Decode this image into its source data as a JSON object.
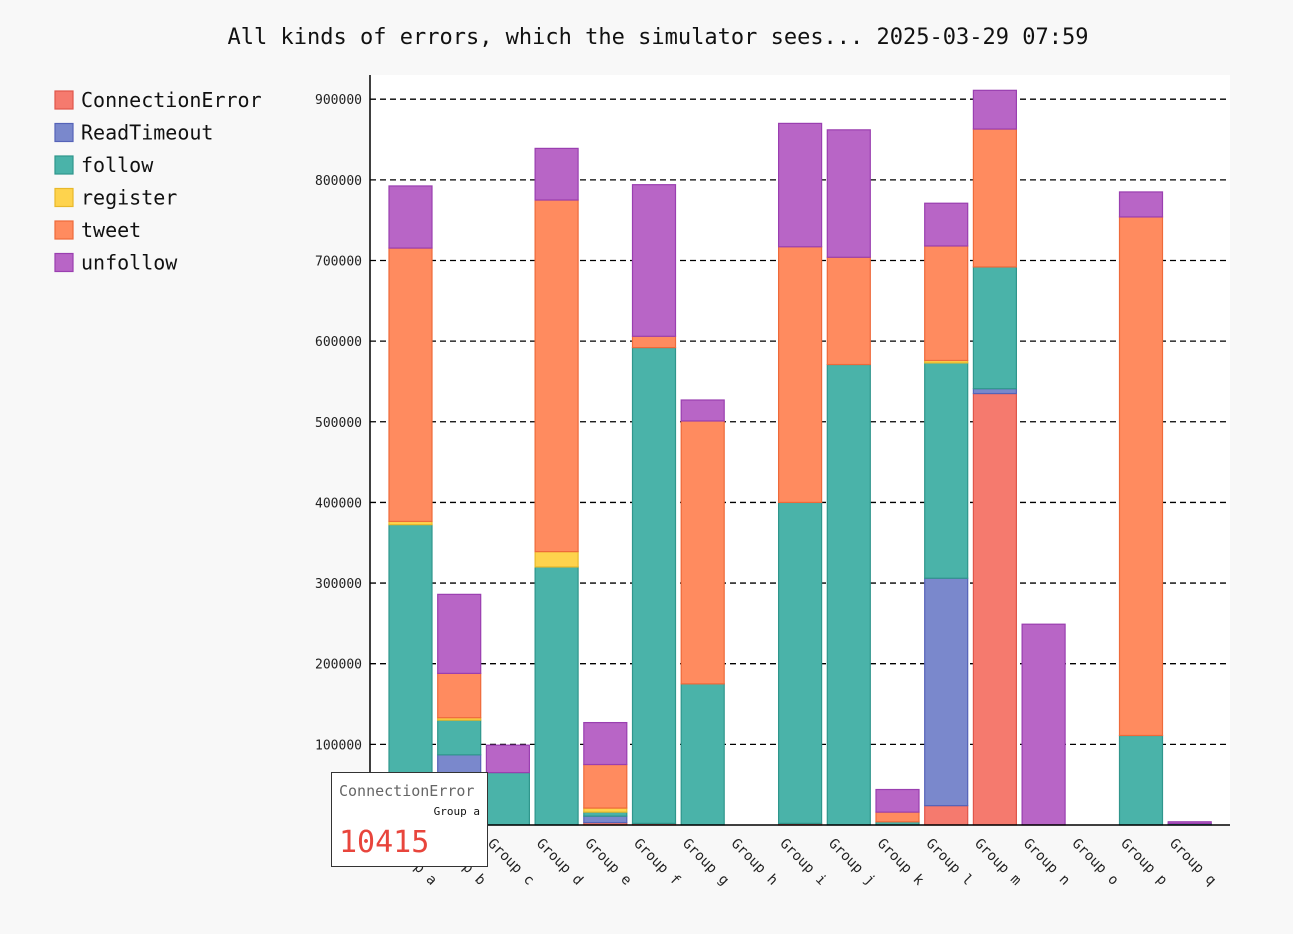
{
  "chart_data": {
    "type": "bar",
    "stacked": true,
    "title": "All kinds of errors, which the simulator sees... 2025-03-29 07:59",
    "xlabel": "",
    "ylabel": "",
    "ylim": [
      0,
      930000
    ],
    "y_ticks": [
      0,
      100000,
      200000,
      300000,
      400000,
      500000,
      600000,
      700000,
      800000,
      900000
    ],
    "y_tick_labels": [
      "0",
      "100000",
      "200000",
      "300000",
      "400000",
      "500000",
      "600000",
      "700000",
      "800000",
      "900000"
    ],
    "grid": "horizontal dashed",
    "legend_position": "top-left",
    "categories": [
      "Group a",
      "Group b",
      "Group c",
      "Group d",
      "Group e",
      "Group f",
      "Group g",
      "Group h",
      "Group i",
      "Group j",
      "Group k",
      "Group l",
      "Group m",
      "Group n",
      "Group o",
      "Group p",
      "Group q"
    ],
    "series": [
      {
        "name": "ConnectionError",
        "color": "#f57a6e",
        "values": [
          10415,
          3000,
          0,
          0,
          3000,
          2000,
          0,
          0,
          2000,
          0,
          0,
          24000,
          535000,
          0,
          0,
          0,
          0
        ]
      },
      {
        "name": "ReadTimeout",
        "color": "#7a88cc",
        "values": [
          0,
          84000,
          0,
          0,
          8000,
          0,
          0,
          0,
          0,
          0,
          0,
          282000,
          6000,
          0,
          0,
          0,
          1000
        ]
      },
      {
        "name": "follow",
        "color": "#4ab3a9",
        "values": [
          362000,
          43000,
          65000,
          320000,
          5000,
          590000,
          175000,
          0,
          398000,
          571000,
          4000,
          267000,
          151000,
          0,
          0,
          111000,
          1000
        ]
      },
      {
        "name": "register",
        "color": "#fed34d",
        "values": [
          4000,
          3000,
          0,
          19000,
          5000,
          0,
          0,
          0,
          0,
          0,
          0,
          3000,
          0,
          0,
          0,
          0,
          0
        ]
      },
      {
        "name": "tweet",
        "color": "#ff8b5f",
        "values": [
          339000,
          55000,
          0,
          436000,
          54000,
          14000,
          326000,
          0,
          317000,
          133000,
          12000,
          142000,
          171000,
          0,
          0,
          643000,
          0
        ]
      },
      {
        "name": "unfollow",
        "color": "#b865c6",
        "values": [
          77000,
          98000,
          34000,
          64000,
          52000,
          188000,
          26000,
          0,
          153000,
          158000,
          28000,
          53000,
          48000,
          249000,
          0,
          31000,
          2000
        ]
      }
    ],
    "tooltip": {
      "series": "ConnectionError",
      "category": "Group a",
      "value": "10415"
    }
  }
}
